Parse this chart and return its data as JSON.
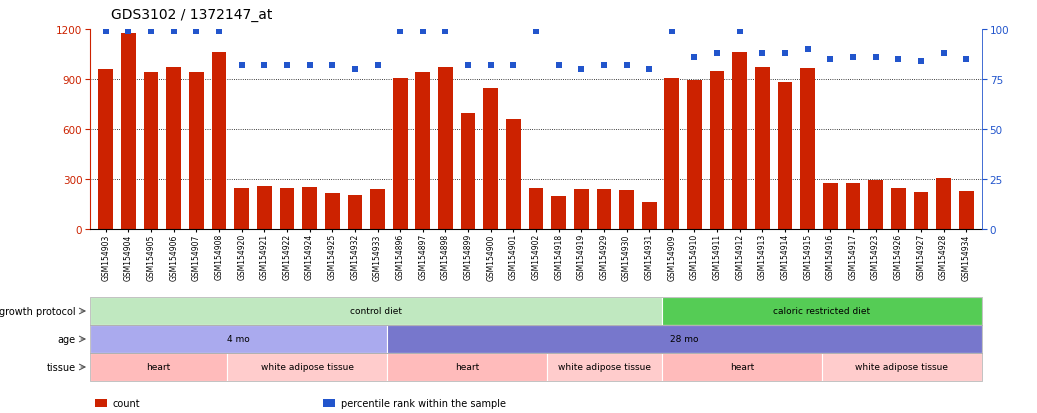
{
  "title": "GDS3102 / 1372147_at",
  "samples": [
    "GSM154903",
    "GSM154904",
    "GSM154905",
    "GSM154906",
    "GSM154907",
    "GSM154908",
    "GSM154920",
    "GSM154921",
    "GSM154922",
    "GSM154924",
    "GSM154925",
    "GSM154932",
    "GSM154933",
    "GSM154896",
    "GSM154897",
    "GSM154898",
    "GSM154899",
    "GSM154900",
    "GSM154901",
    "GSM154902",
    "GSM154918",
    "GSM154919",
    "GSM154929",
    "GSM154930",
    "GSM154931",
    "GSM154909",
    "GSM154910",
    "GSM154911",
    "GSM154912",
    "GSM154913",
    "GSM154914",
    "GSM154915",
    "GSM154916",
    "GSM154917",
    "GSM154923",
    "GSM154926",
    "GSM154927",
    "GSM154928",
    "GSM154934"
  ],
  "counts": [
    960,
    1175,
    940,
    970,
    940,
    1060,
    245,
    260,
    245,
    255,
    215,
    205,
    240,
    905,
    945,
    975,
    695,
    845,
    660,
    245,
    200,
    240,
    240,
    235,
    165,
    905,
    895,
    950,
    1060,
    970,
    880,
    965,
    275,
    275,
    295,
    245,
    225,
    305,
    230
  ],
  "percentiles": [
    99,
    99,
    99,
    99,
    99,
    99,
    82,
    82,
    82,
    82,
    82,
    80,
    82,
    99,
    99,
    99,
    82,
    82,
    82,
    99,
    82,
    80,
    82,
    82,
    80,
    99,
    86,
    88,
    99,
    88,
    88,
    90,
    85,
    86,
    86,
    85,
    84,
    88,
    85
  ],
  "ylim_left": [
    0,
    1200
  ],
  "ylim_right": [
    0,
    100
  ],
  "yticks_left": [
    0,
    300,
    600,
    900,
    1200
  ],
  "yticks_right": [
    0,
    25,
    50,
    75,
    100
  ],
  "bar_color": "#cc2200",
  "dot_color": "#2255cc",
  "background_color": "#ffffff",
  "annotation_rows": [
    {
      "label": "growth protocol",
      "segments": [
        {
          "text": "control diet",
          "start": 0,
          "end": 25,
          "color": "#c0e8c0"
        },
        {
          "text": "caloric restricted diet",
          "start": 25,
          "end": 39,
          "color": "#55cc55"
        }
      ]
    },
    {
      "label": "age",
      "segments": [
        {
          "text": "4 mo",
          "start": 0,
          "end": 13,
          "color": "#aaaaee"
        },
        {
          "text": "28 mo",
          "start": 13,
          "end": 39,
          "color": "#7777cc"
        }
      ]
    },
    {
      "label": "tissue",
      "segments": [
        {
          "text": "heart",
          "start": 0,
          "end": 6,
          "color": "#ffbbbb"
        },
        {
          "text": "white adipose tissue",
          "start": 6,
          "end": 13,
          "color": "#ffcccc"
        },
        {
          "text": "heart",
          "start": 13,
          "end": 20,
          "color": "#ffbbbb"
        },
        {
          "text": "white adipose tissue",
          "start": 20,
          "end": 25,
          "color": "#ffcccc"
        },
        {
          "text": "heart",
          "start": 25,
          "end": 32,
          "color": "#ffbbbb"
        },
        {
          "text": "white adipose tissue",
          "start": 32,
          "end": 39,
          "color": "#ffcccc"
        }
      ]
    }
  ],
  "legend": [
    {
      "color": "#cc2200",
      "label": "count"
    },
    {
      "color": "#2255cc",
      "label": "percentile rank within the sample"
    }
  ]
}
